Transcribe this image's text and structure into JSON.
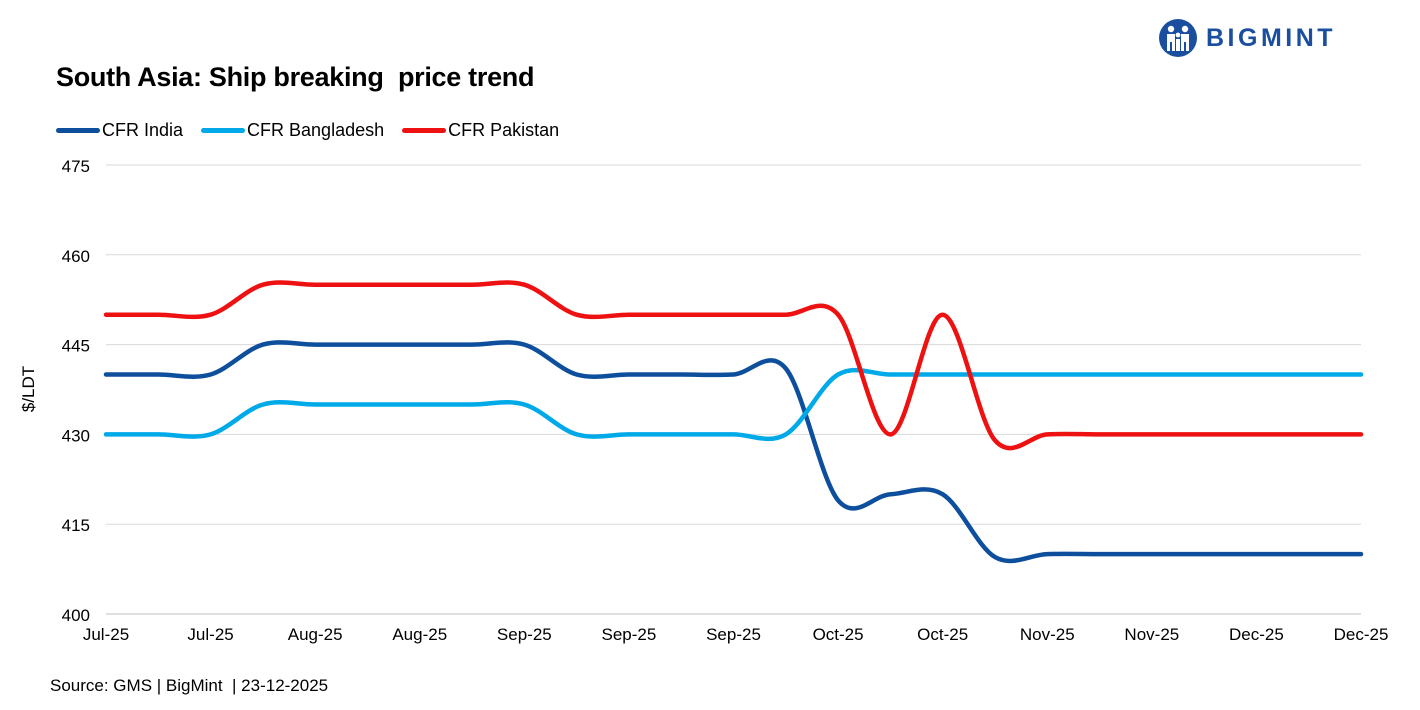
{
  "title": "South Asia: Ship breaking  price trend",
  "logo": {
    "text": "BIGMINT",
    "icon": "bigmint-people-icon",
    "color": "#1a4fa0"
  },
  "source": "Source: GMS | BigMint  | 23-12-2025",
  "chart_data": {
    "type": "line",
    "title": "South Asia: Ship breaking  price trend",
    "xlabel": "",
    "ylabel": "$/LDT",
    "ylim": [
      400,
      475
    ],
    "yticks": [
      400,
      415,
      430,
      445,
      460,
      475
    ],
    "grid": true,
    "legend_position": "top-left",
    "categories": [
      "Jul-25",
      "Jul-25",
      "Aug-25",
      "Aug-25",
      "Sep-25",
      "Sep-25",
      "Sep-25",
      "Oct-25",
      "Oct-25",
      "Nov-25",
      "Nov-25",
      "Dec-25",
      "Dec-25"
    ],
    "x": [
      0,
      0.5,
      1,
      1.5,
      2,
      2.5,
      3,
      3.5,
      4,
      4.5,
      5,
      5.5,
      6,
      6.5,
      7,
      7.5,
      8,
      8.5,
      9,
      9.5,
      10,
      10.5,
      11,
      11.5,
      12
    ],
    "series": [
      {
        "name": "CFR India",
        "color": "#0d4f9c",
        "values": [
          440,
          440,
          440,
          445,
          445,
          445,
          445,
          445,
          445,
          440,
          440,
          440,
          440,
          441,
          419,
          420,
          420,
          409.5,
          410,
          410,
          410,
          410,
          410,
          410,
          410
        ]
      },
      {
        "name": "CFR Bangladesh",
        "color": "#00a9e8",
        "values": [
          430,
          430,
          430,
          435,
          435,
          435,
          435,
          435,
          435,
          430,
          430,
          430,
          430,
          430,
          440,
          440,
          440,
          440,
          440,
          440,
          440,
          440,
          440,
          440,
          440
        ]
      },
      {
        "name": "CFR Pakistan",
        "color": "#ee1111",
        "values": [
          450,
          450,
          450,
          455,
          455,
          455,
          455,
          455,
          455,
          450,
          450,
          450,
          450,
          450,
          450,
          430,
          450,
          429,
          430,
          430,
          430,
          430,
          430,
          430,
          430
        ]
      }
    ]
  }
}
